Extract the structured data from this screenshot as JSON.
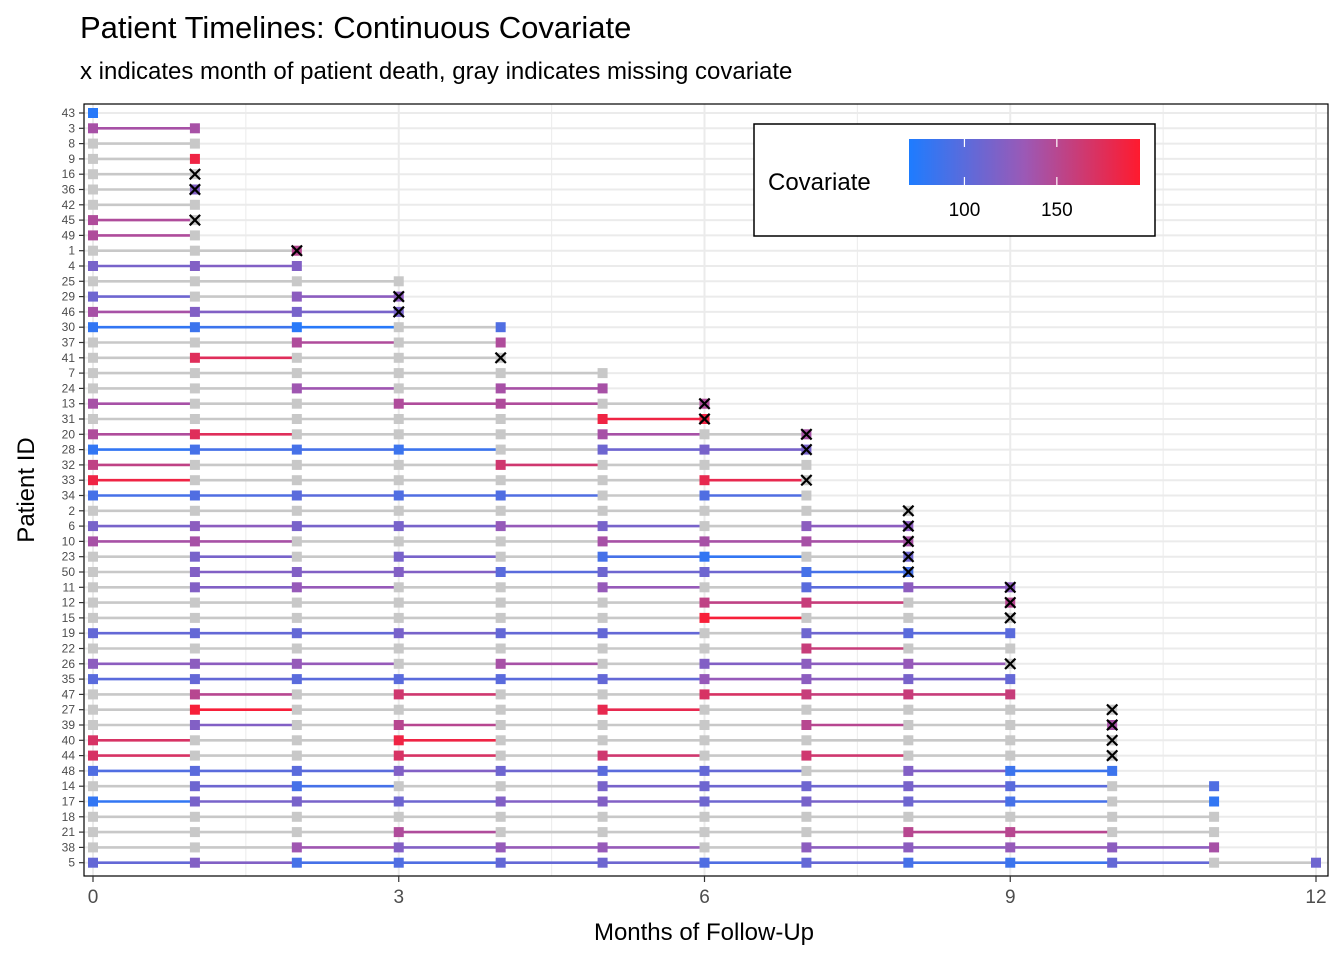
{
  "chart_data": {
    "type": "timeline",
    "title": "Patient Timelines: Continuous Covariate",
    "subtitle": "x indicates month of patient death, gray indicates missing covariate",
    "xlabel": "Months of Follow-Up",
    "ylabel": "Patient ID",
    "xlim": [
      0,
      12
    ],
    "x_ticks": [
      0,
      3,
      6,
      9,
      12
    ],
    "legend": {
      "title": "Covariate",
      "position": "top-right",
      "ticks": [
        100,
        150
      ],
      "range": [
        70,
        195
      ],
      "colors": {
        "low": "#1E7CFF",
        "mid": "#9B59B6",
        "high": "#FF1A2E"
      },
      "missing_color": "#C8C8C8",
      "death_marker": "x"
    },
    "patients": [
      {
        "id": "43",
        "cov": [
          75
        ],
        "death": null
      },
      {
        "id": "3",
        "cov": [
          140,
          140
        ],
        "death": null
      },
      {
        "id": "8",
        "cov": [
          null,
          null
        ],
        "death": null
      },
      {
        "id": "9",
        "cov": [
          null,
          185
        ],
        "death": null
      },
      {
        "id": "16",
        "cov": [
          null,
          null
        ],
        "death": 1
      },
      {
        "id": "36",
        "cov": [
          null,
          120
        ],
        "death": 1
      },
      {
        "id": "42",
        "cov": [
          null,
          null
        ],
        "death": null
      },
      {
        "id": "45",
        "cov": [
          145,
          null
        ],
        "death": 1
      },
      {
        "id": "49",
        "cov": [
          145,
          null
        ],
        "death": null
      },
      {
        "id": "1",
        "cov": [
          null,
          null,
          150
        ],
        "death": 2
      },
      {
        "id": "4",
        "cov": [
          115,
          120,
          120
        ],
        "death": null
      },
      {
        "id": "25",
        "cov": [
          null,
          null,
          null,
          null
        ],
        "death": null
      },
      {
        "id": "29",
        "cov": [
          110,
          null,
          125,
          125
        ],
        "death": 3
      },
      {
        "id": "46",
        "cov": [
          140,
          120,
          115,
          115
        ],
        "death": 3
      },
      {
        "id": "30",
        "cov": [
          80,
          85,
          75,
          null,
          95
        ],
        "death": null
      },
      {
        "id": "37",
        "cov": [
          null,
          null,
          145,
          null,
          145
        ],
        "death": null
      },
      {
        "id": "41",
        "cov": [
          null,
          175,
          null,
          null,
          null
        ],
        "death": 4
      },
      {
        "id": "7",
        "cov": [
          null,
          null,
          null,
          null,
          null,
          null
        ],
        "death": null
      },
      {
        "id": "24",
        "cov": [
          null,
          null,
          135,
          null,
          140,
          140
        ],
        "death": null
      },
      {
        "id": "13",
        "cov": [
          140,
          null,
          null,
          145,
          145,
          null,
          145
        ],
        "death": 6
      },
      {
        "id": "31",
        "cov": [
          null,
          null,
          null,
          null,
          null,
          185,
          185
        ],
        "death": 6
      },
      {
        "id": "20",
        "cov": [
          145,
          175,
          null,
          null,
          null,
          140,
          null,
          140
        ],
        "death": 7
      },
      {
        "id": "28",
        "cov": [
          80,
          90,
          90,
          85,
          null,
          110,
          115,
          115
        ],
        "death": 7
      },
      {
        "id": "32",
        "cov": [
          155,
          null,
          null,
          null,
          165,
          null,
          null,
          null
        ],
        "death": null
      },
      {
        "id": "33",
        "cov": [
          185,
          null,
          null,
          null,
          null,
          null,
          180,
          null
        ],
        "death": 7
      },
      {
        "id": "34",
        "cov": [
          90,
          95,
          100,
          95,
          95,
          null,
          95,
          null
        ],
        "death": null
      },
      {
        "id": "2",
        "cov": [
          null,
          null,
          null,
          null,
          null,
          null,
          null,
          null,
          null
        ],
        "death": 8
      },
      {
        "id": "6",
        "cov": [
          115,
          125,
          115,
          115,
          130,
          115,
          null,
          125,
          125
        ],
        "death": 8
      },
      {
        "id": "10",
        "cov": [
          140,
          140,
          null,
          null,
          null,
          140,
          140,
          140,
          140
        ],
        "death": 8
      },
      {
        "id": "23",
        "cov": [
          null,
          115,
          null,
          115,
          null,
          90,
          80,
          null,
          110
        ],
        "death": 8
      },
      {
        "id": "50",
        "cov": [
          null,
          120,
          120,
          120,
          100,
          110,
          110,
          90,
          90
        ],
        "death": 8
      },
      {
        "id": "11",
        "cov": [
          null,
          120,
          130,
          null,
          null,
          130,
          null,
          100,
          125,
          125
        ],
        "death": 9
      },
      {
        "id": "12",
        "cov": [
          null,
          null,
          null,
          null,
          null,
          null,
          155,
          160,
          null,
          150
        ],
        "death": 9
      },
      {
        "id": "15",
        "cov": [
          null,
          null,
          null,
          null,
          null,
          null,
          190,
          null,
          null,
          null
        ],
        "death": 9
      },
      {
        "id": "19",
        "cov": [
          105,
          105,
          105,
          115,
          105,
          105,
          null,
          110,
          100,
          100
        ],
        "death": null
      },
      {
        "id": "22",
        "cov": [
          null,
          null,
          null,
          null,
          null,
          null,
          null,
          160,
          null,
          null
        ],
        "death": null
      },
      {
        "id": "26",
        "cov": [
          125,
          125,
          130,
          null,
          140,
          null,
          120,
          125,
          130,
          null
        ],
        "death": 9
      },
      {
        "id": "35",
        "cov": [
          100,
          105,
          100,
          100,
          100,
          105,
          130,
          125,
          115,
          105
        ],
        "death": null
      },
      {
        "id": "47",
        "cov": [
          null,
          150,
          null,
          165,
          null,
          null,
          170,
          160,
          160,
          160
        ],
        "death": null
      },
      {
        "id": "27",
        "cov": [
          null,
          190,
          null,
          null,
          null,
          180,
          null,
          null,
          null,
          null,
          null
        ],
        "death": 10
      },
      {
        "id": "39",
        "cov": [
          null,
          120,
          null,
          150,
          null,
          null,
          null,
          150,
          null,
          null,
          140
        ],
        "death": 10
      },
      {
        "id": "40",
        "cov": [
          170,
          null,
          null,
          185,
          null,
          null,
          null,
          null,
          null,
          null,
          null
        ],
        "death": 10
      },
      {
        "id": "44",
        "cov": [
          170,
          null,
          null,
          170,
          null,
          165,
          null,
          165,
          null,
          null,
          null
        ],
        "death": 10
      },
      {
        "id": "48",
        "cov": [
          95,
          100,
          100,
          120,
          110,
          100,
          105,
          null,
          120,
          85,
          85
        ],
        "death": null
      },
      {
        "id": "14",
        "cov": [
          null,
          110,
          90,
          null,
          null,
          115,
          110,
          110,
          115,
          100,
          null,
          95
        ],
        "death": null
      },
      {
        "id": "17",
        "cov": [
          80,
          115,
          115,
          110,
          120,
          120,
          110,
          115,
          110,
          90,
          null,
          80
        ],
        "death": null
      },
      {
        "id": "18",
        "cov": [
          null,
          null,
          null,
          null,
          null,
          null,
          null,
          null,
          null,
          null,
          null,
          null
        ],
        "death": null
      },
      {
        "id": "21",
        "cov": [
          null,
          null,
          null,
          145,
          null,
          null,
          null,
          null,
          150,
          150,
          null,
          null
        ],
        "death": null
      },
      {
        "id": "38",
        "cov": [
          null,
          null,
          135,
          120,
          130,
          130,
          null,
          125,
          125,
          130,
          125,
          140
        ],
        "death": null
      },
      {
        "id": "5",
        "cov": [
          105,
          120,
          90,
          95,
          105,
          110,
          95,
          105,
          90,
          85,
          105,
          null,
          110
        ],
        "death": null
      }
    ]
  }
}
